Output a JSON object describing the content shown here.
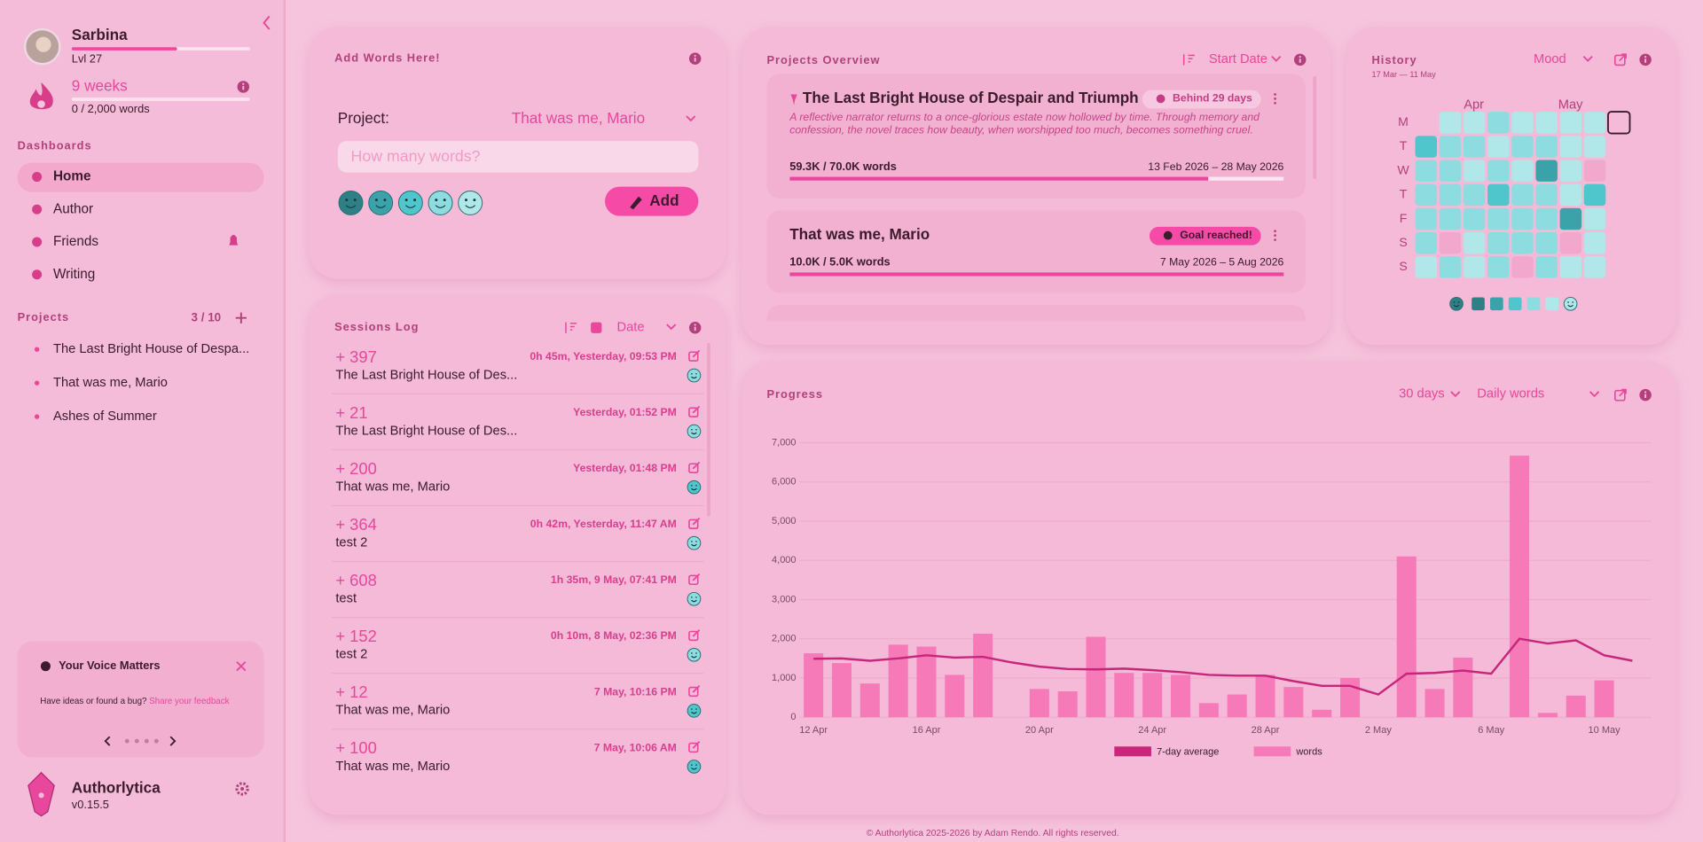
{
  "sidebar": {
    "user": {
      "name": "Sarbina",
      "level": "Lvl 27"
    },
    "streak": {
      "title": "9 weeks",
      "words": "0 / 2,000 words"
    },
    "dashboards_title": "Dashboards",
    "nav": [
      "Home",
      "Author",
      "Friends",
      "Writing"
    ],
    "projects_title": "Projects",
    "projects_count": "3 / 10",
    "projects": [
      "The Last Bright House of Despa...",
      "That was me, Mario",
      "Ashes of Summer"
    ],
    "feedback": {
      "title": "Your Voice Matters",
      "text": "Have ideas or found a bug?",
      "link": "Share your feedback"
    },
    "app": {
      "name": "Authorlytica",
      "version": "v0.15.5"
    }
  },
  "mood_colors": [
    "#2f7f86",
    "#3aa3aa",
    "#4fc6cc",
    "#8ddde0",
    "#b0e8ea"
  ],
  "add_words": {
    "title": "Add Words Here!",
    "project_label": "Project:",
    "project_value": "That was me, Mario",
    "placeholder": "How many words?",
    "button": "Add"
  },
  "sessions": {
    "title": "Sessions Log",
    "sort": "Date",
    "entries": [
      {
        "amount": "+ 397",
        "meta": "0h 45m, Yesterday, 09:53 PM",
        "project": "The Last Bright House of Des...",
        "mood": 3
      },
      {
        "amount": "+ 21",
        "meta": "Yesterday, 01:52 PM",
        "project": "The Last Bright House of Des...",
        "mood": 3
      },
      {
        "amount": "+ 200",
        "meta": "Yesterday, 01:48 PM",
        "project": "That was me, Mario",
        "mood": 2
      },
      {
        "amount": "+ 364",
        "meta": "0h 42m, Yesterday, 11:47 AM",
        "project": "test 2",
        "mood": 3
      },
      {
        "amount": "+ 608",
        "meta": "1h 35m, 9 May, 07:41 PM",
        "project": "test",
        "mood": 3
      },
      {
        "amount": "+ 152",
        "meta": "0h 10m, 8 May, 02:36 PM",
        "project": "test 2",
        "mood": 3
      },
      {
        "amount": "+ 12",
        "meta": "7 May, 10:16 PM",
        "project": "That was me, Mario",
        "mood": 2
      },
      {
        "amount": "+ 100",
        "meta": "7 May, 10:06 AM",
        "project": "That was me, Mario",
        "mood": 2
      }
    ]
  },
  "projects_overview": {
    "title": "Projects Overview",
    "sort": "Start Date",
    "projects": [
      {
        "title": "The Last Bright House of Despair and Triumph",
        "status": "Behind 29 days",
        "description": "A reflective narrator returns to a once-glorious estate now hollowed by time. Through memory and confession, the novel traces how beauty, when worshipped too much, becomes something cruel.",
        "words": 59300,
        "goal": 70000,
        "progress": "59.3K / 70.0K words",
        "dates": "13 Feb 2026 – 28 May 2026"
      },
      {
        "title": "That was me, Mario",
        "status": "Goal reached!",
        "words": 10000,
        "goal": 5000,
        "progress": "10.0K / 5.0K words",
        "dates": "7 May 2026 – 5 Aug 2026"
      }
    ]
  },
  "history": {
    "title": "History",
    "range": "17 Mar — 11 May",
    "metric": "Mood",
    "months": [
      "Apr",
      "May"
    ],
    "days": [
      "M",
      "T",
      "W",
      "T",
      "F",
      "S",
      "S"
    ],
    "weeks": [
      [
        2,
        3,
        3,
        3,
        3,
        4
      ],
      [
        4,
        3,
        3,
        3,
        3,
        null,
        3
      ],
      [
        4,
        3,
        4,
        3,
        3,
        4,
        4
      ],
      [
        3,
        4,
        3,
        2,
        3,
        3,
        3
      ],
      [
        4,
        3,
        4,
        3,
        3,
        3,
        null
      ],
      [
        4,
        3,
        1,
        3,
        3,
        3,
        3
      ],
      [
        4,
        4,
        4,
        4,
        1,
        null,
        4
      ],
      [
        4,
        4,
        null,
        2,
        4,
        4,
        4
      ],
      [
        null
      ]
    ]
  },
  "progress_controls": {
    "range": "30 days",
    "metric": "Daily words"
  },
  "chart_data": {
    "type": "bar",
    "title": "Progress",
    "categories": [
      "12 Apr",
      null,
      null,
      null,
      "16 Apr",
      null,
      null,
      null,
      "20 Apr",
      null,
      null,
      null,
      "24 Apr",
      null,
      null,
      null,
      "28 Apr",
      null,
      null,
      null,
      "2 May",
      null,
      null,
      null,
      "6 May",
      null,
      null,
      null,
      "10 May",
      null
    ],
    "series": [
      {
        "name": "7-day average",
        "type": "line",
        "color": "#c8267a",
        "values": [
          1490,
          1500,
          1440,
          1500,
          1580,
          1520,
          1540,
          1400,
          1290,
          1230,
          1220,
          1240,
          1200,
          1150,
          1080,
          1060,
          1060,
          920,
          800,
          800,
          580,
          1110,
          1130,
          1190,
          1110,
          2000,
          1880,
          1960,
          1580,
          1440
        ]
      },
      {
        "name": "words",
        "type": "bar",
        "color": "#f77ab8",
        "values": [
          1630,
          1380,
          860,
          1850,
          1800,
          1080,
          2130,
          0,
          720,
          660,
          2050,
          1130,
          1130,
          1080,
          360,
          580,
          1080,
          770,
          190,
          1000,
          0,
          4100,
          720,
          1520,
          0,
          6670,
          110,
          550,
          940,
          0
        ]
      }
    ],
    "ylim": [
      0,
      7000
    ],
    "yticks": [
      0,
      {
        "value": 1000,
        "label": "1,000"
      },
      {
        "value": 2000,
        "label": "2,000"
      },
      {
        "value": 3000,
        "label": "3,000"
      },
      {
        "value": 4000,
        "label": "4,000"
      },
      {
        "value": 5000,
        "label": "5,000"
      },
      {
        "value": 6000,
        "label": "6,000"
      },
      {
        "value": 7000,
        "label": "7,000"
      }
    ],
    "grid": true,
    "legend": "bottom"
  },
  "footer": "© Authorlytica 2025-2026 by Adam Rendo. All rights reserved."
}
